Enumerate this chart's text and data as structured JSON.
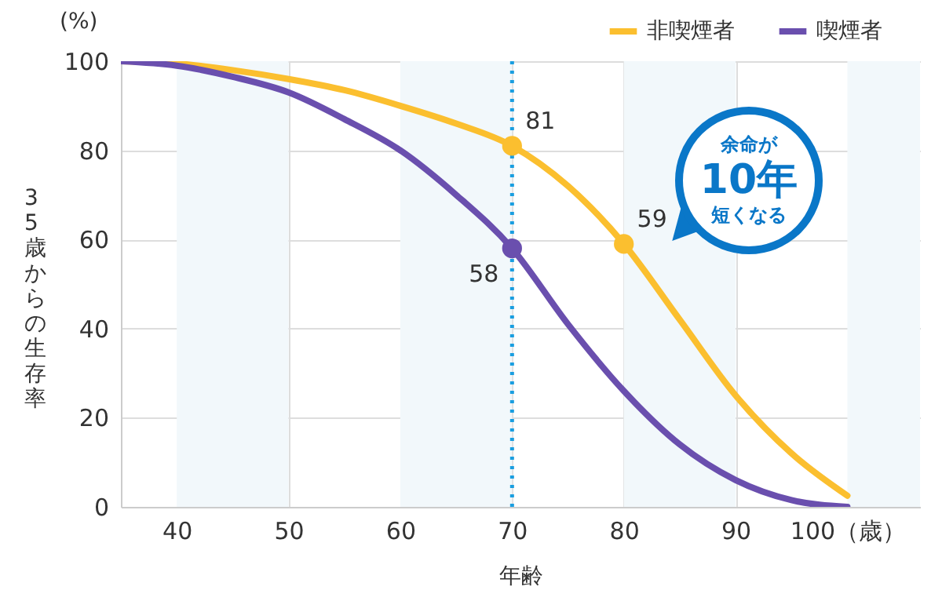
{
  "chart_data": {
    "type": "line",
    "xlabel": "年齢",
    "ylabel": "35歳からの生存率",
    "annotations": [
      "(%)",
      "余命が",
      "10年",
      "短くなる"
    ],
    "x": [
      35,
      40,
      45,
      50,
      55,
      60,
      65,
      70,
      75,
      80,
      85,
      90,
      95,
      100
    ],
    "series": [
      {
        "name": "非喫煙者",
        "color": "#fbbf2f",
        "values": [
          100,
          99.5,
          98,
          96,
          93.5,
          90,
          86,
          81,
          72,
          59,
          42,
          25,
          12,
          2.5
        ],
        "value_labels": [
          null,
          null,
          null,
          null,
          null,
          null,
          null,
          "81",
          null,
          "59",
          null,
          null,
          null,
          null
        ]
      },
      {
        "name": "喫煙者",
        "color": "#6a4fae",
        "values": [
          100,
          99,
          96.5,
          93,
          87,
          80,
          70,
          58,
          41,
          26,
          14,
          6,
          1.5,
          0
        ],
        "value_labels": [
          null,
          null,
          null,
          null,
          null,
          null,
          null,
          "58",
          null,
          null,
          null,
          null,
          null,
          null
        ]
      }
    ],
    "xlim": [
      35,
      106.5
    ],
    "xticks": [
      40,
      50,
      60,
      70,
      80,
      90,
      {
        "value": 100,
        "label": "100（歳）"
      }
    ],
    "ylim": [
      0,
      100
    ],
    "yticks": [
      0,
      20,
      40,
      60,
      80,
      100
    ],
    "grid": true,
    "legend": "top right",
    "line_style": "solid",
    "ref_lines": [
      {
        "axis": "x",
        "value": 70,
        "color": "#1a9ee0",
        "line_style": "dotted"
      }
    ],
    "bands": [
      {
        "axis": "x",
        "from": 40,
        "to": 50,
        "color": "#f2f8fb"
      },
      {
        "axis": "x",
        "from": 60,
        "to": 70,
        "color": "#f2f8fb"
      },
      {
        "axis": "x",
        "from": 80,
        "to": 90,
        "color": "#f2f8fb"
      },
      {
        "axis": "x",
        "from": 100,
        "to": 106.5,
        "color": "#f2f8fb"
      }
    ]
  }
}
